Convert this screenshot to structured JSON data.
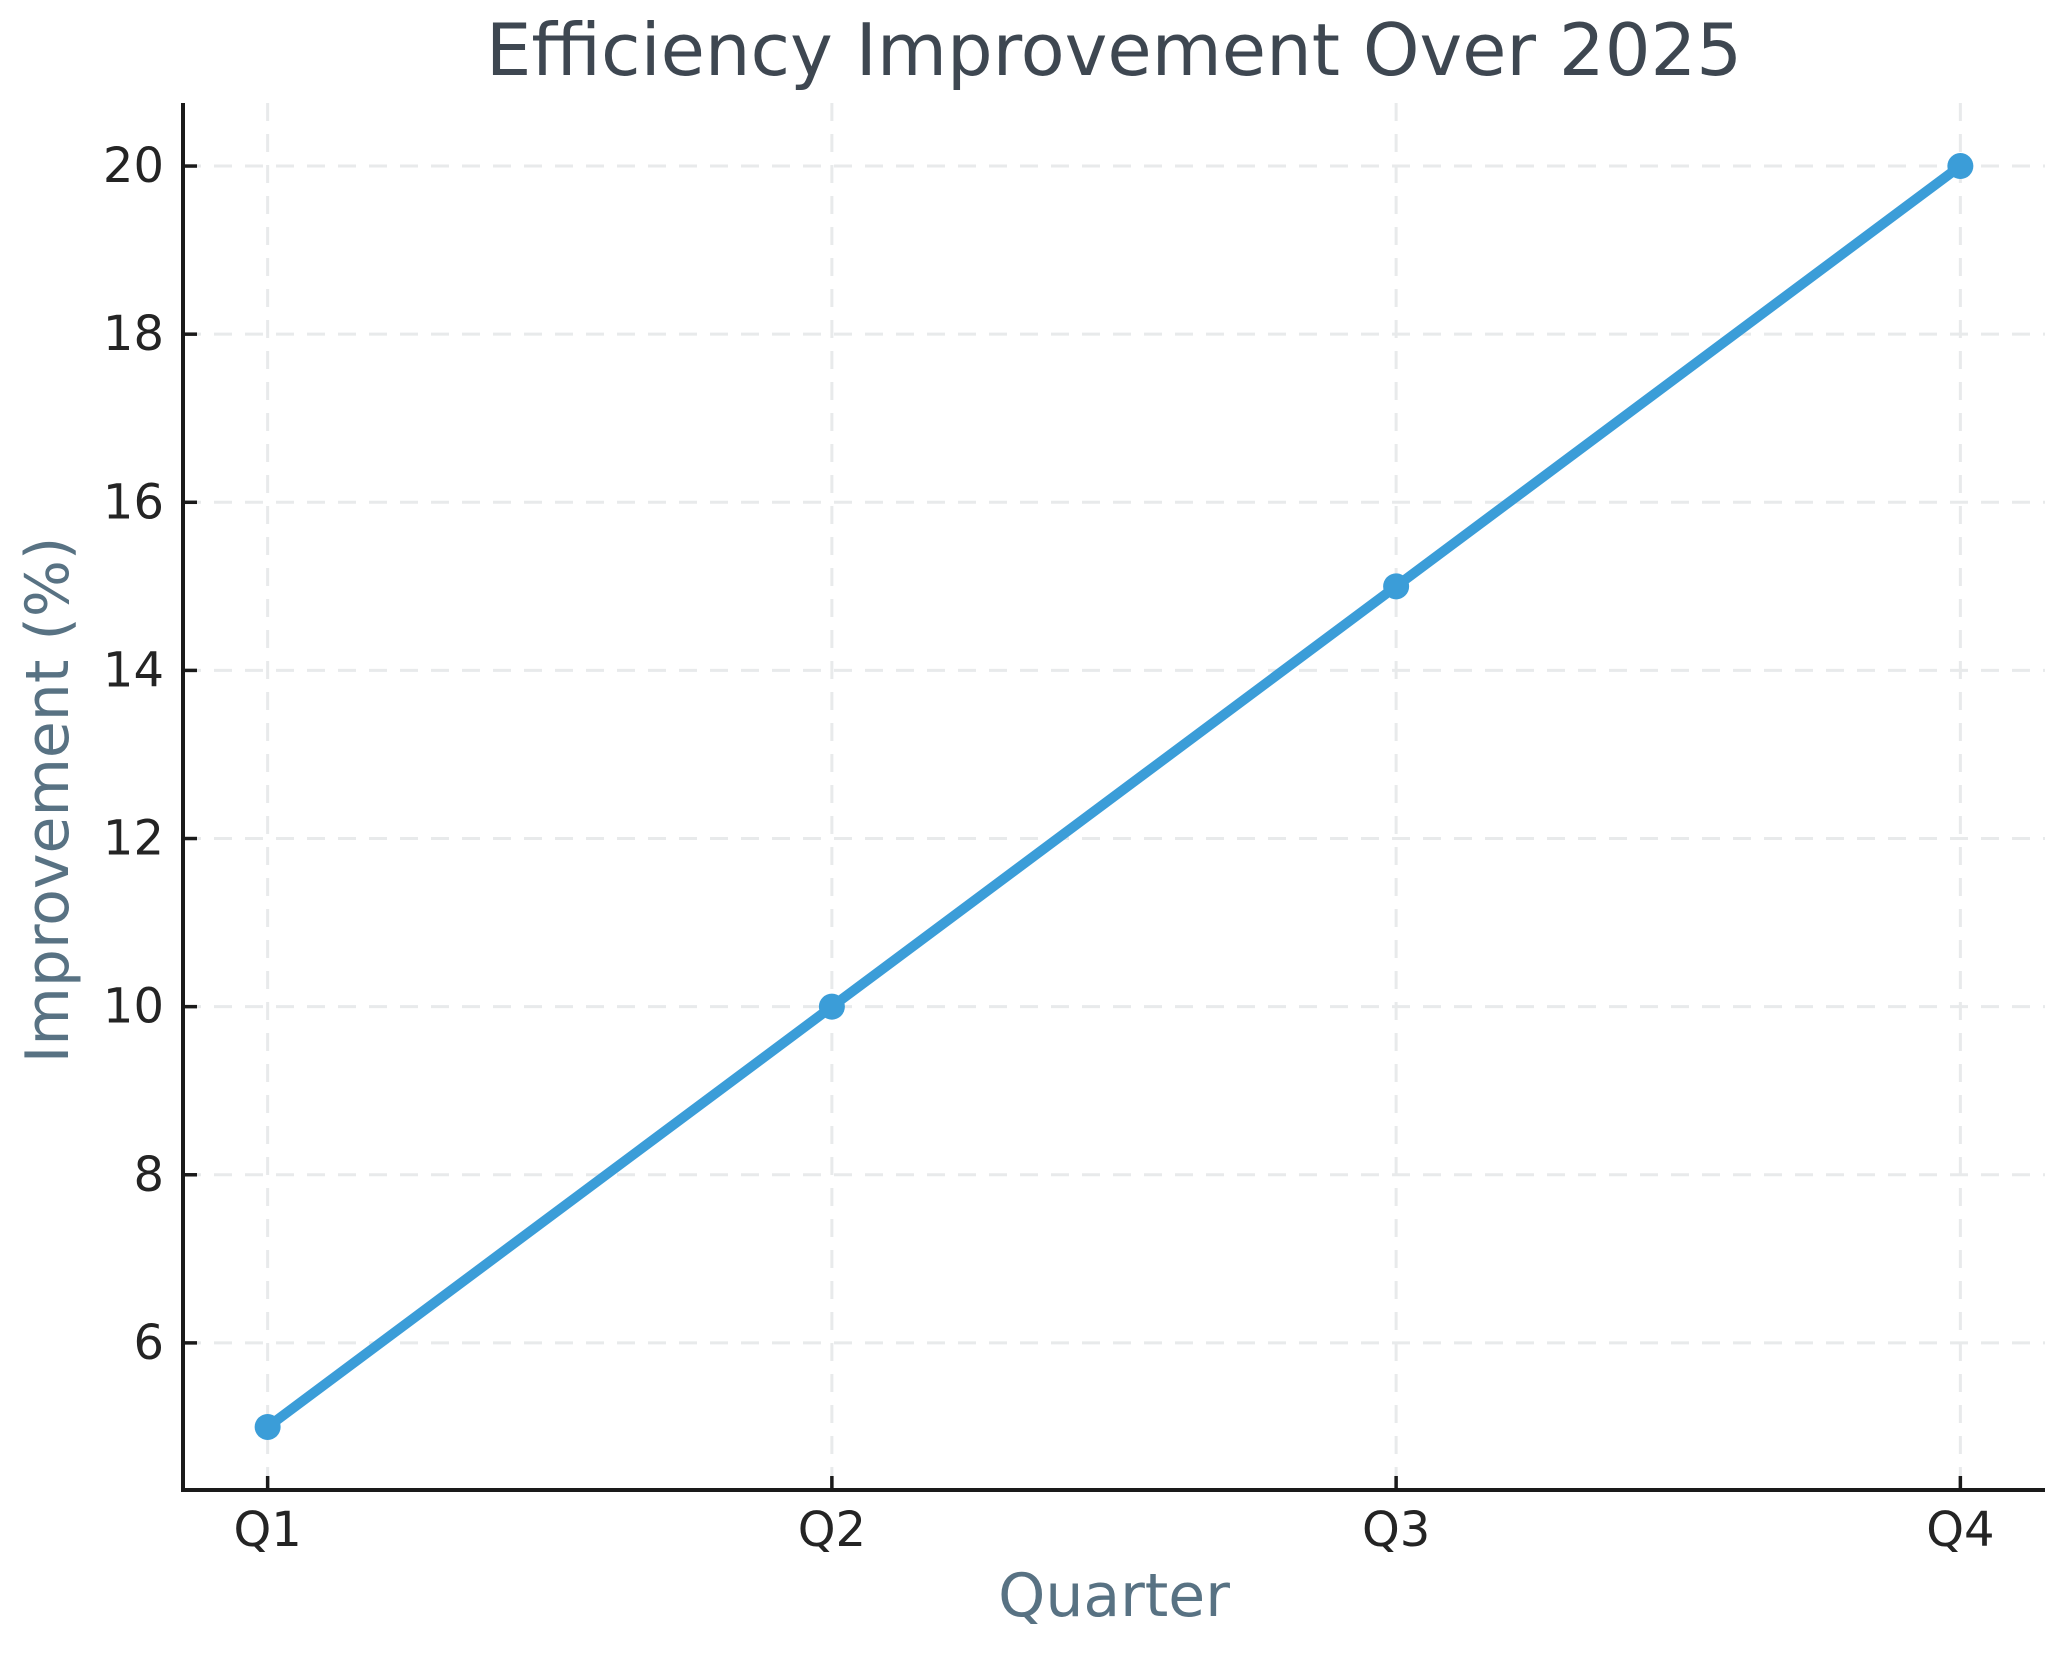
{
  "chart_data": {
    "type": "line",
    "title": "Efficiency Improvement Over 2025",
    "xlabel": "Quarter",
    "ylabel": "Improvement (%)",
    "categories": [
      "Q1",
      "Q2",
      "Q3",
      "Q4"
    ],
    "values": [
      5,
      10,
      15,
      20
    ],
    "y_ticks": [
      6,
      8,
      10,
      12,
      14,
      16,
      18,
      20
    ],
    "ylim": [
      4.25,
      20.75
    ],
    "grid": true,
    "grid_style": "dashed",
    "legend_position": "none",
    "colors": {
      "line": "#3b9dd8",
      "marker": "#3b9dd8",
      "title_text": "#3e4751",
      "axis_label_text": "#587283",
      "tick_label_text": "#242424",
      "spine": "#1a1a1a",
      "grid": "#e8eaeb",
      "background": "#ffffff"
    }
  }
}
